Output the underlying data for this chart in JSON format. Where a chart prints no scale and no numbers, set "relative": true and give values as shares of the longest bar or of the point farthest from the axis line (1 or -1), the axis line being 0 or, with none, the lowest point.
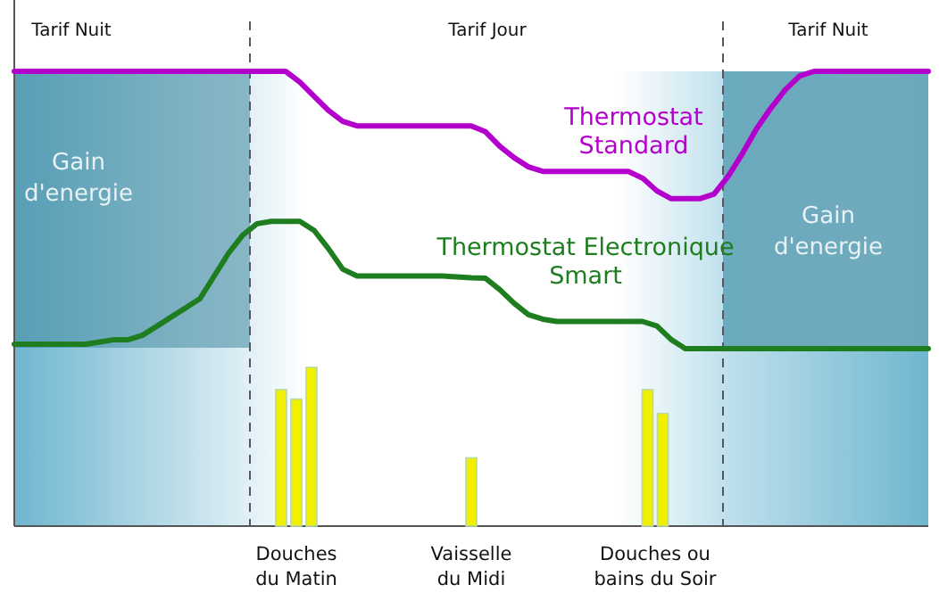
{
  "chart_data": [
    {
      "type": "line",
      "relative": true,
      "categories": [
        null,
        null,
        null,
        null,
        null,
        null,
        null,
        null,
        null,
        null,
        null,
        null,
        null,
        null,
        null,
        null,
        null,
        null,
        null,
        null,
        null,
        null,
        null,
        null,
        null,
        null,
        null,
        null,
        null,
        null,
        null,
        null,
        null,
        null,
        null,
        null,
        null,
        null,
        null,
        null,
        null,
        null,
        null,
        null,
        null,
        null,
        null,
        null,
        null,
        null,
        null,
        null,
        null,
        null,
        null,
        null,
        null,
        null,
        null,
        null,
        null,
        null,
        null,
        null,
        null
      ],
      "series": [
        {
          "name": "Thermostat Standard",
          "color": "#b400cc",
          "values": [
            1,
            1,
            1,
            1,
            1,
            1,
            1,
            1,
            1,
            1,
            1,
            1,
            1,
            1,
            1,
            1,
            1,
            1,
            1,
            1,
            0.976,
            0.945,
            0.914,
            0.89,
            0.88,
            0.88,
            0.88,
            0.88,
            0.88,
            0.88,
            0.88,
            0.88,
            0.88,
            0.867,
            0.835,
            0.81,
            0.79,
            0.78,
            0.78,
            0.78,
            0.78,
            0.78,
            0.78,
            0.78,
            0.765,
            0.737,
            0.72,
            0.72,
            0.72,
            0.73,
            0.77,
            0.82,
            0.875,
            0.92,
            0.96,
            0.99,
            1,
            1,
            1,
            1,
            1,
            1,
            1,
            1,
            1
          ]
        },
        {
          "name": "Thermostat Electronique Smart",
          "color": "#1e7d1e",
          "values": [
            0.4,
            0.4,
            0.4,
            0.4,
            0.4,
            0.4,
            0.405,
            0.41,
            0.41,
            0.42,
            0.44,
            0.46,
            0.48,
            0.5,
            0.55,
            0.6,
            0.64,
            0.665,
            0.67,
            0.67,
            0.67,
            0.65,
            0.61,
            0.565,
            0.55,
            0.55,
            0.55,
            0.55,
            0.55,
            0.55,
            0.55,
            0.548,
            0.546,
            0.545,
            0.52,
            0.49,
            0.465,
            0.455,
            0.45,
            0.45,
            0.45,
            0.45,
            0.45,
            0.45,
            0.45,
            0.44,
            0.41,
            0.39,
            0.39,
            0.39,
            0.39,
            0.39,
            0.39,
            0.39,
            0.39,
            0.39,
            0.39,
            0.39,
            0.39,
            0.39,
            0.39,
            0.39,
            0.39,
            0.39,
            0.39
          ]
        }
      ],
      "annotations": [
        "Tarif Nuit",
        "Tarif Jour",
        "Tarif Nuit",
        "Gain d'energie",
        "Gain d'energie"
      ]
    },
    {
      "type": "bar",
      "relative": true,
      "categories": [
        "Douches du Matin",
        "Vaisselle du Midi",
        "Douches ou bains du Soir"
      ],
      "series": [
        {
          "color": "#f0f000",
          "values": [
            0.86,
            0.43,
            0.86
          ]
        },
        {
          "color": "#f0f000",
          "values": [
            0.8,
            null,
            0.71
          ]
        },
        {
          "color": "#f0f000",
          "values": [
            1,
            null,
            null
          ]
        }
      ]
    }
  ]
}
